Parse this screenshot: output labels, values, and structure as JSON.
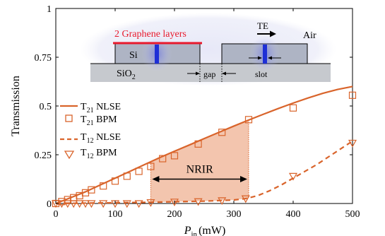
{
  "chart_data": {
    "type": "line",
    "xlabel": "P",
    "xlabel_sub": "in",
    "xlabel_unit": "(mW)",
    "ylabel": "Transmission",
    "xlim": [
      0,
      500
    ],
    "ylim": [
      0,
      1
    ],
    "xticks": [
      "0",
      "100",
      "200",
      "300",
      "400",
      "500"
    ],
    "yticks": [
      "0",
      "0.25",
      "0.5",
      "0.75",
      "1"
    ],
    "grid": false,
    "legend_position": "left",
    "legend": [
      {
        "main": "T",
        "sub": "21",
        "rest": " NLSE"
      },
      {
        "main": "T",
        "sub": "21",
        "rest": " BPM"
      },
      {
        "main": "T",
        "sub": "12",
        "rest": " NLSE"
      },
      {
        "main": "T",
        "sub": "12",
        "rest": " BPM"
      }
    ],
    "series": [
      {
        "style": "solid-line",
        "color": "#D9642B",
        "x": [
          0,
          25,
          50,
          75,
          100,
          125,
          150,
          175,
          200,
          225,
          250,
          275,
          300,
          325,
          350,
          375,
          400,
          425,
          450,
          475,
          500
        ],
        "y": [
          0,
          0.03,
          0.06,
          0.095,
          0.13,
          0.165,
          0.2,
          0.235,
          0.268,
          0.3,
          0.333,
          0.365,
          0.397,
          0.428,
          0.458,
          0.487,
          0.515,
          0.541,
          0.565,
          0.585,
          0.6
        ]
      },
      {
        "style": "square-markers",
        "color": "#D9642B",
        "x": [
          0,
          10,
          20,
          30,
          40,
          50,
          60,
          80,
          100,
          120,
          140,
          160,
          180,
          200,
          240,
          280,
          325,
          400,
          500
        ],
        "y": [
          0,
          0.01,
          0.02,
          0.03,
          0.04,
          0.055,
          0.07,
          0.09,
          0.115,
          0.14,
          0.165,
          0.19,
          0.23,
          0.245,
          0.305,
          0.365,
          0.43,
          0.49,
          0.555
        ]
      },
      {
        "style": "dashed-line",
        "color": "#D9642B",
        "x": [
          0,
          50,
          100,
          150,
          200,
          250,
          300,
          320,
          340,
          360,
          380,
          400,
          420,
          440,
          460,
          480,
          500
        ],
        "y": [
          0,
          0.002,
          0.004,
          0.006,
          0.009,
          0.012,
          0.018,
          0.025,
          0.04,
          0.065,
          0.095,
          0.13,
          0.165,
          0.2,
          0.24,
          0.28,
          0.32
        ]
      },
      {
        "style": "triangle-markers",
        "color": "#D9642B",
        "x": [
          0,
          10,
          20,
          30,
          40,
          50,
          60,
          80,
          100,
          120,
          140,
          160,
          200,
          240,
          280,
          320,
          400,
          500
        ],
        "y": [
          0,
          0,
          0,
          0,
          0,
          0,
          0,
          0,
          0,
          0,
          0,
          0.005,
          0.008,
          0.01,
          0.015,
          0.025,
          0.14,
          0.31
        ]
      }
    ],
    "shaded_region": {
      "x_start": 160,
      "x_end": 325,
      "upper_series_index": 0,
      "lower_series_index": 2,
      "color": "#F3C5AE",
      "label": "NRIR"
    },
    "inset": {
      "graphene_label": "2 Graphene layers",
      "si_label": "Si",
      "sio2_label": "SiO",
      "sio2_sub": "2",
      "gap_label": "gap",
      "slot_label": "slot",
      "te_label": "TE",
      "air_label": "Air"
    },
    "colors": {
      "line": "#D9642B",
      "shade": "#F3C5AE",
      "graphene": "#E8192C",
      "slot": "#1E2FD6",
      "waveguide_fill": "#AEB4C4"
    }
  }
}
